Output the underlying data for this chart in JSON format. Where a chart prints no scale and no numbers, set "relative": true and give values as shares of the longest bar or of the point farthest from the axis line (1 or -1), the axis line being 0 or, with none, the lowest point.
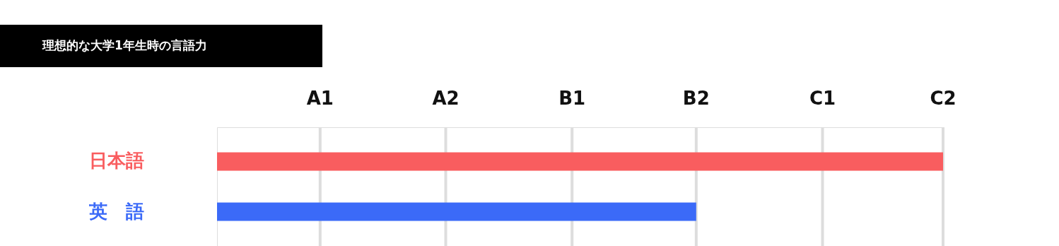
{
  "chart_data": {
    "type": "bar",
    "orientation": "horizontal",
    "relative": true,
    "title": "理想的な大学1年生時の言語力",
    "categories": [
      "日本語",
      "英　語"
    ],
    "values": [
      1,
      0.66
    ],
    "colors": [
      "#f95d5f",
      "#3b6af8"
    ],
    "ref_lines": [
      {
        "axis": "x",
        "value": 0.142,
        "label": "A1",
        "color": "#dddddd"
      },
      {
        "axis": "x",
        "value": 0.315,
        "label": "A2",
        "color": "#dddddd"
      },
      {
        "axis": "x",
        "value": 0.489,
        "label": "B1",
        "color": "#dddddd"
      },
      {
        "axis": "x",
        "value": 0.66,
        "label": "B2",
        "color": "#dddddd"
      },
      {
        "axis": "x",
        "value": 0.834,
        "label": "C1",
        "color": "#dddddd"
      },
      {
        "axis": "x",
        "value": 1,
        "label": "C2",
        "color": "#dddddd"
      }
    ]
  }
}
